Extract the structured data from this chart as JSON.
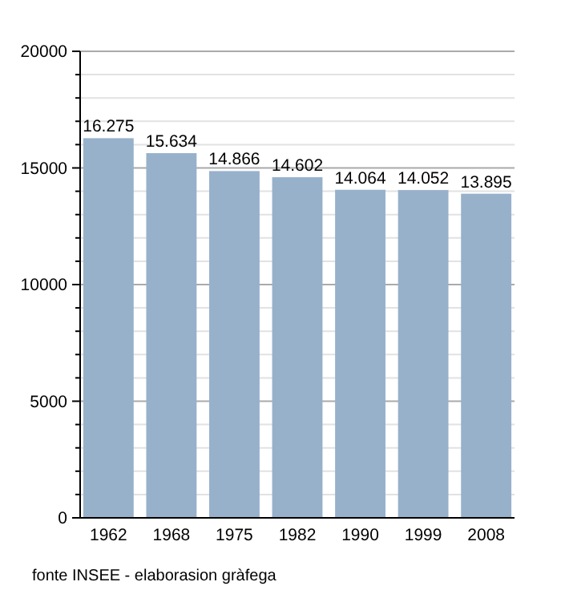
{
  "chart_data": {
    "type": "bar",
    "categories": [
      "1962",
      "1968",
      "1975",
      "1982",
      "1990",
      "1999",
      "2008"
    ],
    "values": [
      16275,
      15634,
      14866,
      14602,
      14064,
      14052,
      13895
    ],
    "value_labels": [
      "16.275",
      "15.634",
      "14.866",
      "14.602",
      "14.064",
      "14.052",
      "13.895"
    ],
    "color": "#97b1cb",
    "ylim": [
      0,
      20000
    ],
    "yticks": [
      0,
      {
        "value": 1000,
        "label": null
      },
      {
        "value": 2000,
        "label": null
      },
      {
        "value": 3000,
        "label": null
      },
      {
        "value": 4000,
        "label": null
      },
      5000,
      {
        "value": 6000,
        "label": null
      },
      {
        "value": 7000,
        "label": null
      },
      {
        "value": 8000,
        "label": null
      },
      {
        "value": 9000,
        "label": null
      },
      10000,
      {
        "value": 11000,
        "label": null
      },
      {
        "value": 12000,
        "label": null
      },
      {
        "value": 13000,
        "label": null
      },
      {
        "value": 14000,
        "label": null
      },
      15000,
      {
        "value": 16000,
        "label": null
      },
      {
        "value": 17000,
        "label": null
      },
      {
        "value": 18000,
        "label": null
      },
      {
        "value": 19000,
        "label": null
      },
      20000
    ],
    "grid": true,
    "annotations": [
      "fonte INSEE - elaborasion gràfega"
    ]
  }
}
